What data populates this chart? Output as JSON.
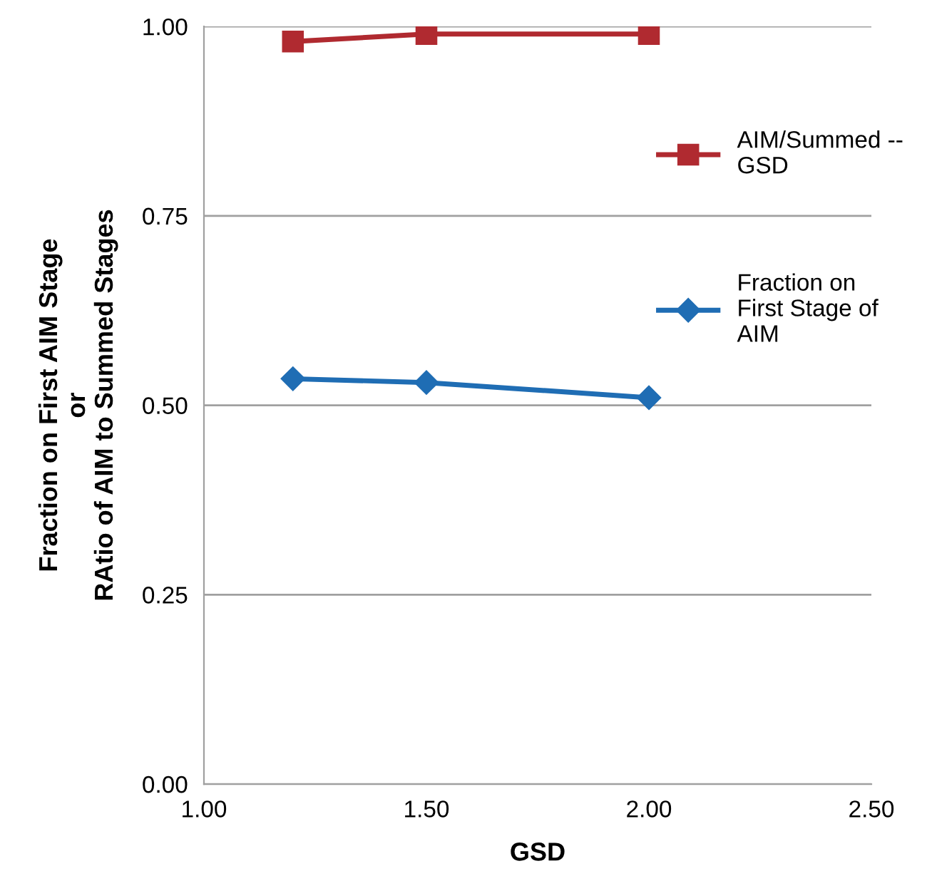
{
  "chart_data": {
    "type": "line",
    "xlabel": "GSD",
    "ylabel": "Fraction on First AIM Stage\nor\nRAtio of AIM to Summed Stages",
    "x": [
      1.2,
      1.5,
      2.0
    ],
    "series": [
      {
        "name": "AIM/Summed -- GSD",
        "color": "#b02a30",
        "marker": "square",
        "values": [
          0.98,
          0.99,
          0.99
        ]
      },
      {
        "name": "Fraction on First Stage of AIM",
        "color": "#1f6db4",
        "marker": "diamond",
        "values": [
          0.535,
          0.53,
          0.51
        ]
      }
    ],
    "xlim": [
      1.0,
      2.5
    ],
    "xticks": [
      {
        "value": 1.0,
        "label": "1.00"
      },
      {
        "value": 1.5,
        "label": "1.50"
      },
      {
        "value": 2.0,
        "label": "2.00"
      },
      {
        "value": 2.5,
        "label": "2.50"
      }
    ],
    "ylim": [
      0.0,
      1.0
    ],
    "yticks": [
      {
        "value": 0.0,
        "label": "0.00"
      },
      {
        "value": 0.25,
        "label": "0.25"
      },
      {
        "value": 0.5,
        "label": "0.50"
      },
      {
        "value": 0.75,
        "label": "0.75"
      },
      {
        "value": 1.0,
        "label": "1.00"
      }
    ],
    "grid": "y",
    "legend": "right",
    "line_style": "solid"
  }
}
